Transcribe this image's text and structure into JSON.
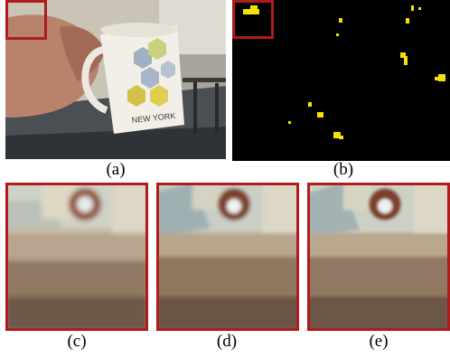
{
  "figure": {
    "captions": {
      "a": "(a)",
      "b": "(b)",
      "c": "(c)",
      "d": "(d)",
      "e": "(e)"
    },
    "colors": {
      "highlight_box": "#b11b1b",
      "mask_detection": "#f3e300",
      "mask_background": "#000000"
    }
  }
}
